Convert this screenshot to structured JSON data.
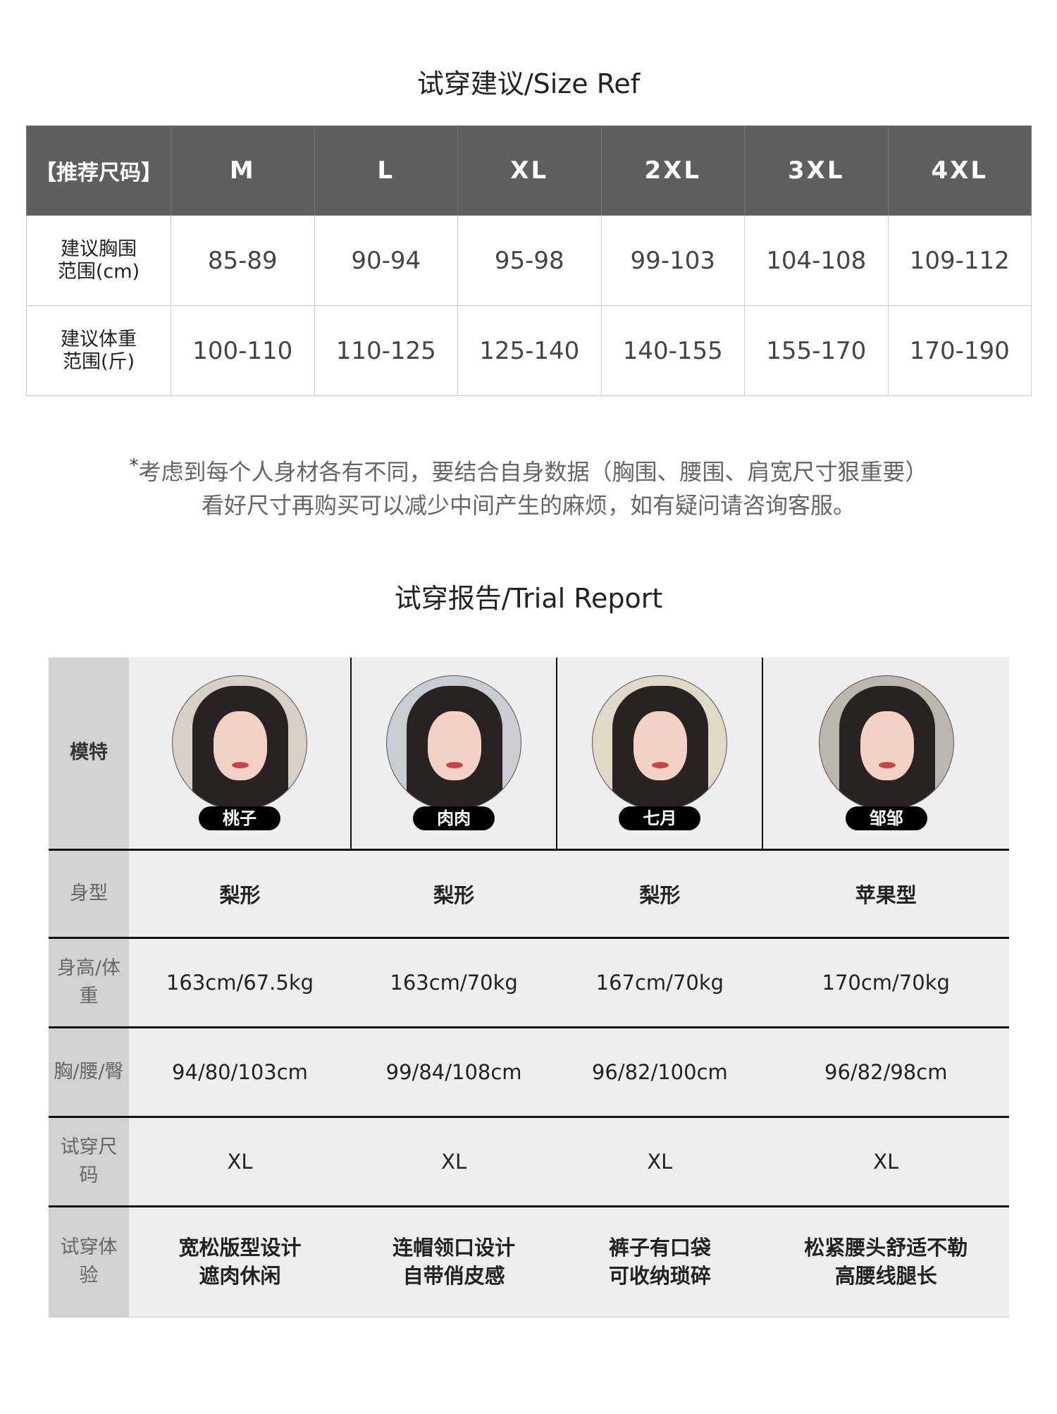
{
  "size_ref": {
    "title": "试穿建议/Size Ref",
    "header": [
      "【推荐尺码】",
      "M",
      "L",
      "XL",
      "2XL",
      "3XL",
      "4XL"
    ],
    "rows": [
      {
        "label": [
          "建议胸围",
          "范围(cm)"
        ],
        "values": [
          "85-89",
          "90-94",
          "95-98",
          "99-103",
          "104-108",
          "109-112"
        ]
      },
      {
        "label": [
          "建议体重",
          "范围(斤)"
        ],
        "values": [
          "100-110",
          "110-125",
          "125-140",
          "140-155",
          "155-170",
          "170-190"
        ]
      }
    ],
    "note_star": "*",
    "note_lines": [
      "考虑到每个人身材各有不同，要结合自身数据（胸围、腰围、肩宽尺寸狠重要）",
      "看好尺寸再购买可以减少中间产生的麻烦，如有疑问请咨询客服。"
    ]
  },
  "trial_report": {
    "title": "试穿报告/Trial Report",
    "model_label": "模特",
    "models": [
      {
        "name": "桃子",
        "bg": "#d8cfc6"
      },
      {
        "name": "肉肉",
        "bg": "#c9ccd2"
      },
      {
        "name": "七月",
        "bg": "#e0d8c8"
      },
      {
        "name": "邹邹",
        "bg": "#bdb6ae"
      }
    ],
    "rows": [
      {
        "label": "身型",
        "values": [
          "梨形",
          "梨形",
          "梨形",
          "苹果型"
        ]
      },
      {
        "label": "身高/体重",
        "values": [
          "163cm/67.5kg",
          "163cm/70kg",
          "167cm/70kg",
          "170cm/70kg"
        ]
      },
      {
        "label": "胸/腰/臀",
        "values": [
          "94/80/103cm",
          "99/84/108cm",
          "96/82/100cm",
          "96/82/98cm"
        ]
      },
      {
        "label": "试穿尺码",
        "values": [
          "XL",
          "XL",
          "XL",
          "XL"
        ]
      },
      {
        "label": "试穿体验",
        "values": [
          [
            "宽松版型设计",
            "遮肉休闲"
          ],
          [
            "连帽领口设计",
            "自带俏皮感"
          ],
          [
            "裤子有口袋",
            "可收纳琐碎"
          ],
          [
            "松紧腰头舒适不勒",
            "高腰线腿长"
          ]
        ]
      }
    ]
  }
}
